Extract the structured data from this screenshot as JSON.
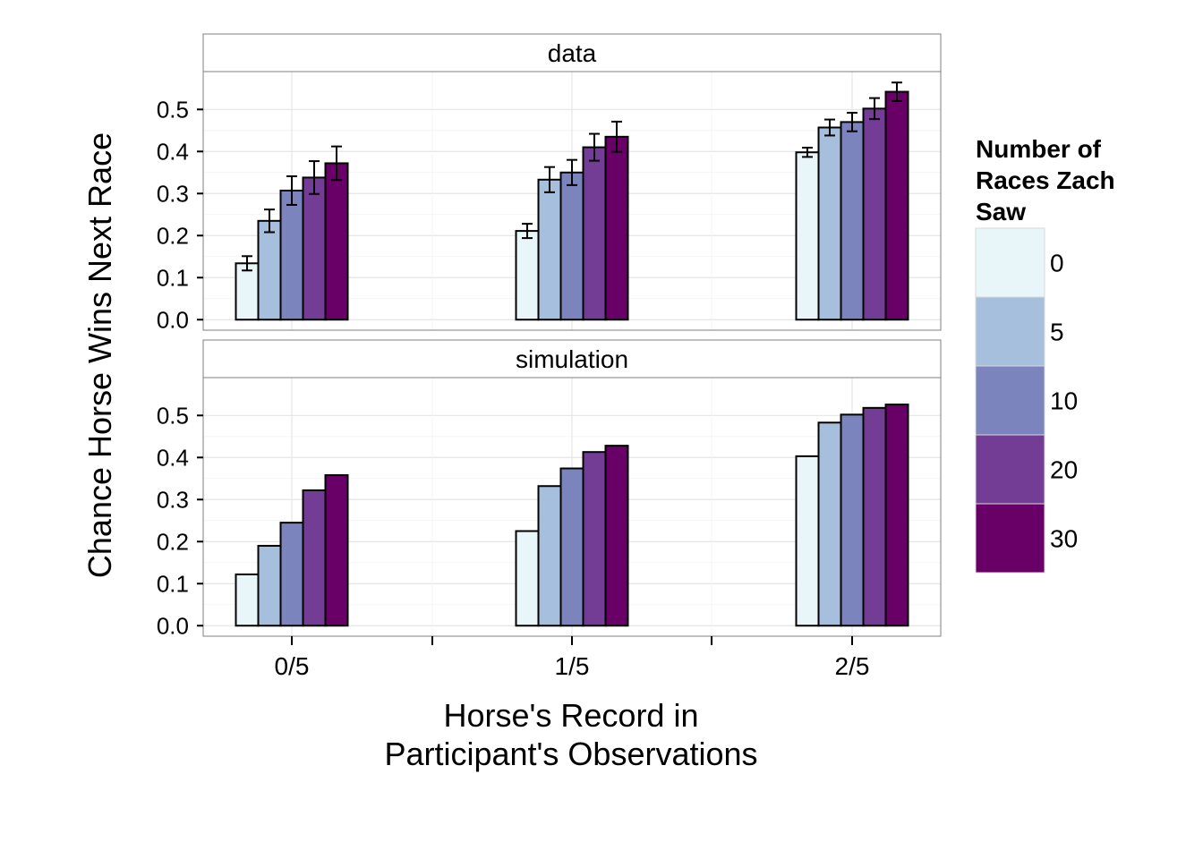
{
  "chart_data": {
    "type": "bar",
    "ylabel": "Chance Horse Wins Next Race",
    "xlabel_lines": [
      "Horse's Record in",
      "Participant's Observations"
    ],
    "categories": [
      "0/5",
      "1/5",
      "2/5"
    ],
    "ylim": [
      -0.025,
      0.59
    ],
    "yticks": [
      0.0,
      0.1,
      0.2,
      0.3,
      0.4,
      0.5
    ],
    "ytick_labels": [
      "0.0",
      "0.1",
      "0.2",
      "0.3",
      "0.4",
      "0.5"
    ],
    "grid": true,
    "legend": {
      "title_lines": [
        "Number of",
        "Races Zach",
        "Saw"
      ],
      "position": "right",
      "labels": [
        "0",
        "5",
        "10",
        "20",
        "30"
      ]
    },
    "colors": [
      "#e8f5f9",
      "#a6bfdc",
      "#7b84bc",
      "#733d96",
      "#690068"
    ],
    "panels": [
      {
        "title": "data",
        "error_bars": true,
        "series": [
          {
            "name": "0",
            "values": [
              0.134,
              0.211,
              0.398
            ],
            "err": [
              0.017,
              0.017,
              0.011
            ]
          },
          {
            "name": "5",
            "values": [
              0.235,
              0.333,
              0.457
            ],
            "err": [
              0.027,
              0.03,
              0.019
            ]
          },
          {
            "name": "10",
            "values": [
              0.307,
              0.35,
              0.47
            ],
            "err": [
              0.034,
              0.03,
              0.022
            ]
          },
          {
            "name": "20",
            "values": [
              0.338,
              0.41,
              0.502
            ],
            "err": [
              0.039,
              0.032,
              0.025
            ]
          },
          {
            "name": "30",
            "values": [
              0.372,
              0.435,
              0.542
            ],
            "err": [
              0.04,
              0.036,
              0.022
            ]
          }
        ]
      },
      {
        "title": "simulation",
        "error_bars": false,
        "series": [
          {
            "name": "0",
            "values": [
              0.122,
              0.225,
              0.403
            ]
          },
          {
            "name": "5",
            "values": [
              0.19,
              0.332,
              0.483
            ]
          },
          {
            "name": "10",
            "values": [
              0.245,
              0.374,
              0.502
            ]
          },
          {
            "name": "20",
            "values": [
              0.322,
              0.413,
              0.518
            ]
          },
          {
            "name": "30",
            "values": [
              0.358,
              0.428,
              0.526
            ]
          }
        ]
      }
    ]
  }
}
